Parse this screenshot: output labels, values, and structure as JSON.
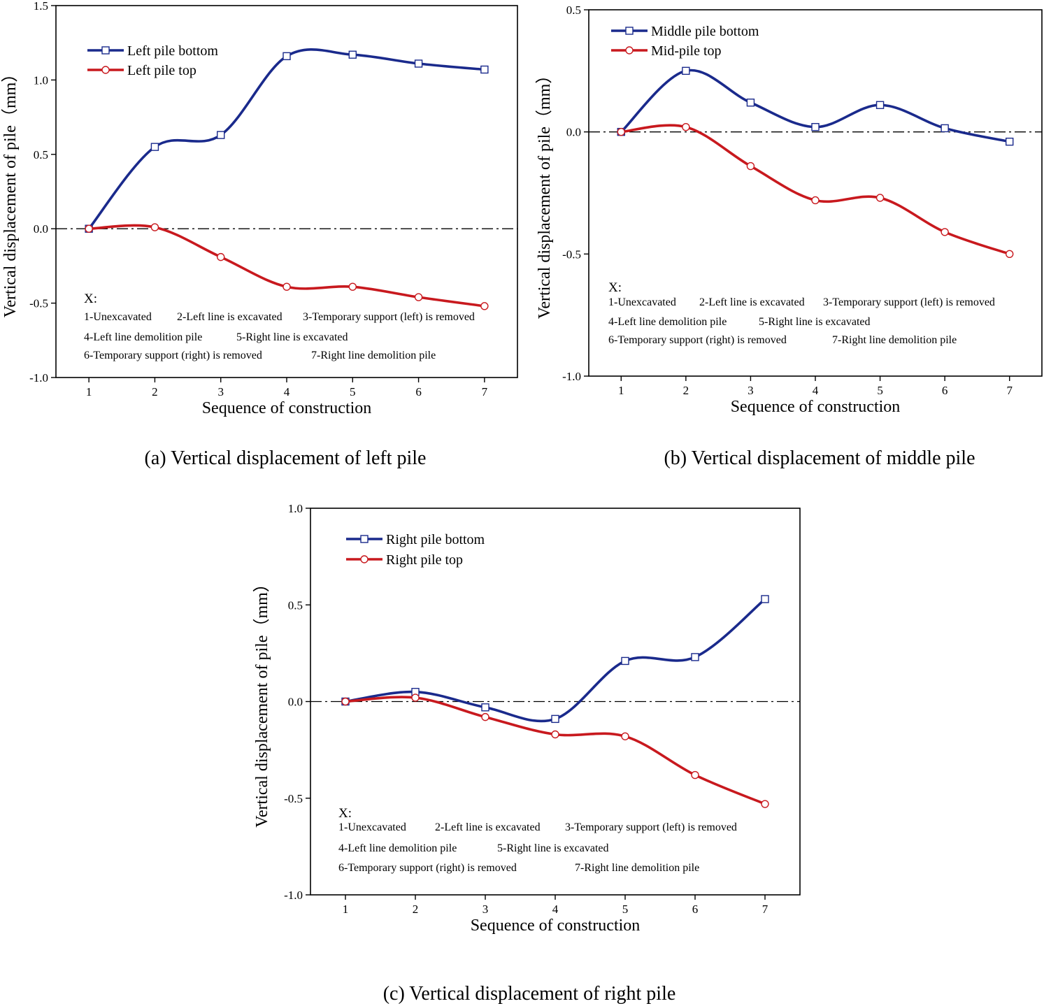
{
  "chart_data": [
    {
      "type": "line",
      "caption": "(a) Vertical displacement of left pile",
      "xlabel": "Sequence of construction",
      "ylabel": "Vertical displacement of pile（mm）",
      "x": [
        1,
        2,
        3,
        4,
        5,
        6,
        7
      ],
      "xlim": [
        0.5,
        7.5
      ],
      "ylim": [
        -1.0,
        1.5
      ],
      "yticks": [
        "-1.0",
        "-0.5",
        "0.0",
        "0.5",
        "1.0",
        "1.5"
      ],
      "reference_line": 0.0,
      "series": [
        {
          "name": "Left pile bottom",
          "color": "#1a2a8c",
          "marker": "square",
          "values": [
            0.0,
            0.55,
            0.63,
            1.16,
            1.17,
            1.11,
            1.07
          ]
        },
        {
          "name": "Left pile top",
          "color": "#c8191e",
          "marker": "circle",
          "values": [
            0.0,
            0.01,
            -0.19,
            -0.39,
            -0.39,
            -0.46,
            -0.52
          ]
        }
      ],
      "legend": "top-left",
      "note_title": "X:",
      "note_items": [
        "1-Unexcavated",
        "2-Left line is excavated",
        "3-Temporary support (left) is removed",
        "4-Left line demolition pile",
        "5-Right line is excavated",
        "6-Temporary support (right) is removed",
        "7-Right line demolition pile"
      ]
    },
    {
      "type": "line",
      "caption": "(b) Vertical displacement of middle pile",
      "xlabel": "Sequence of construction",
      "ylabel": "Vertical displacement of pile（mm）",
      "x": [
        1,
        2,
        3,
        4,
        5,
        6,
        7
      ],
      "xlim": [
        0.5,
        7.5
      ],
      "ylim": [
        -1.0,
        0.5
      ],
      "yticks": [
        "-1.0",
        "-0.5",
        "0.0",
        "0.5"
      ],
      "reference_line": 0.0,
      "series": [
        {
          "name": "Middle pile bottom",
          "color": "#1a2a8c",
          "marker": "square",
          "values": [
            0.0,
            0.25,
            0.12,
            0.02,
            0.11,
            0.015,
            -0.04
          ]
        },
        {
          "name": "Mid-pile top",
          "color": "#c8191e",
          "marker": "circle",
          "values": [
            0.0,
            0.02,
            -0.14,
            -0.28,
            -0.27,
            -0.41,
            -0.5
          ]
        }
      ],
      "legend": "top-left",
      "note_title": "X:",
      "note_items": [
        "1-Unexcavated",
        "2-Left line is excavated",
        "3-Temporary support (left) is removed",
        "4-Left line demolition pile",
        "5-Right line is excavated",
        "6-Temporary support (right) is removed",
        "7-Right line demolition pile"
      ]
    },
    {
      "type": "line",
      "caption": "(c) Vertical displacement of right pile",
      "xlabel": "Sequence of construction",
      "ylabel": "Vertical displacement of pile（mm）",
      "x": [
        1,
        2,
        3,
        4,
        5,
        6,
        7
      ],
      "xlim": [
        0.5,
        7.5
      ],
      "ylim": [
        -1.0,
        1.0
      ],
      "yticks": [
        "-1.0",
        "-0.5",
        "0.0",
        "0.5",
        "1.0"
      ],
      "reference_line": 0.0,
      "series": [
        {
          "name": "Right pile bottom",
          "color": "#1a2a8c",
          "marker": "square",
          "values": [
            0.0,
            0.05,
            -0.03,
            -0.09,
            0.21,
            0.23,
            0.53
          ]
        },
        {
          "name": "Right pile top",
          "color": "#c8191e",
          "marker": "circle",
          "values": [
            0.0,
            0.02,
            -0.08,
            -0.17,
            -0.18,
            -0.38,
            -0.53
          ]
        }
      ],
      "legend": "top-left",
      "note_title": "X:",
      "note_items": [
        "1-Unexcavated",
        "2-Left line is excavated",
        "3-Temporary support (left) is removed",
        "4-Left line demolition pile",
        "5-Right line is excavated",
        "6-Temporary support (right) is removed",
        "7-Right line demolition pile"
      ]
    }
  ]
}
